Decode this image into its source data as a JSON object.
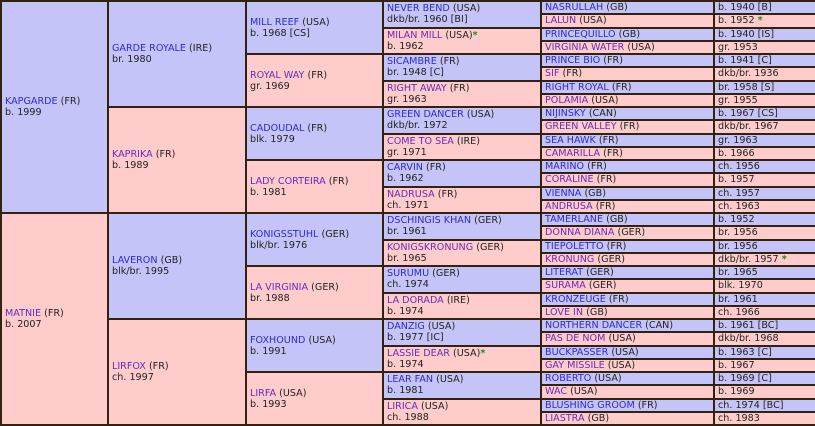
{
  "colors": {
    "sire_bg": "#c4c4f8",
    "dam_bg": "#ffcccc",
    "sire_link": "#2c2ccc",
    "dam_link": "#6a2ab8",
    "star": "#1e8a1e",
    "border": "#33220f"
  },
  "star_icon": "*",
  "gen1": [
    {
      "name": "KAPGARDE",
      "country": "(FR)",
      "info": "b. 1999"
    },
    {
      "name": "MATNIE",
      "country": "(FR)",
      "info": "b. 2007"
    }
  ],
  "gen2": [
    {
      "name": "GARDE ROYALE",
      "country": "(IRE)",
      "info": "br. 1980"
    },
    {
      "name": "KAPRIKA",
      "country": "(FR)",
      "info": "b. 1989"
    },
    {
      "name": "LAVERON",
      "country": "(GB)",
      "info": "blk/br. 1995"
    },
    {
      "name": "LIRFOX",
      "country": "(FR)",
      "info": "ch. 1997"
    }
  ],
  "gen3": [
    {
      "name": "MILL REEF",
      "country": "(USA)",
      "info": "b. 1968 [CS]"
    },
    {
      "name": "ROYAL WAY",
      "country": "(FR)",
      "info": "gr. 1969"
    },
    {
      "name": "CADOUDAL",
      "country": "(FR)",
      "info": "blk. 1979"
    },
    {
      "name": "LADY CORTEIRA",
      "country": "(FR)",
      "info": "b. 1981"
    },
    {
      "name": "KONIGSSTUHL",
      "country": "(GER)",
      "info": "blk/br. 1976"
    },
    {
      "name": "LA VIRGINIA",
      "country": "(GER)",
      "info": "br. 1988"
    },
    {
      "name": "FOXHOUND",
      "country": "(USA)",
      "info": "b. 1991"
    },
    {
      "name": "LIRFA",
      "country": "(USA)",
      "info": "b. 1993"
    }
  ],
  "gen4": [
    {
      "name": "NEVER BEND",
      "country": "(USA)",
      "info": "dkb/br. 1960 [BI]"
    },
    {
      "name": "MILAN MILL",
      "country": "(USA)",
      "info": "b. 1962",
      "star": "name"
    },
    {
      "name": "SICAMBRE",
      "country": "(FR)",
      "info": "br. 1948 [C]"
    },
    {
      "name": "RIGHT AWAY",
      "country": "(FR)",
      "info": "gr. 1963"
    },
    {
      "name": "GREEN DANCER",
      "country": "(USA)",
      "info": "dkb/br. 1972"
    },
    {
      "name": "COME TO SEA",
      "country": "(IRE)",
      "info": "gr. 1971"
    },
    {
      "name": "CARVIN",
      "country": "(FR)",
      "info": "b. 1962"
    },
    {
      "name": "NADRUSA",
      "country": "(FR)",
      "info": "ch. 1971"
    },
    {
      "name": "DSCHINGIS KHAN",
      "country": "(GER)",
      "info": "br. 1961"
    },
    {
      "name": "KONIGSKRONUNG",
      "country": "(GER)",
      "info": "br. 1965"
    },
    {
      "name": "SURUMU",
      "country": "(GER)",
      "info": "ch. 1974"
    },
    {
      "name": "LA DORADA",
      "country": "(IRE)",
      "info": "b. 1974"
    },
    {
      "name": "DANZIG",
      "country": "(USA)",
      "info": "b. 1977 [IC]"
    },
    {
      "name": "LASSIE DEAR",
      "country": "(USA)",
      "info": "b. 1974",
      "star": "name"
    },
    {
      "name": "LEAR FAN",
      "country": "(USA)",
      "info": "b. 1981"
    },
    {
      "name": "LIRICA",
      "country": "(USA)",
      "info": "ch. 1988"
    }
  ],
  "gen5": [
    {
      "name": "NASRULLAH",
      "country": "(GB)",
      "info": "b. 1940 [B]"
    },
    {
      "name": "LALUN",
      "country": "(USA)",
      "info": "b. 1952",
      "star": "info"
    },
    {
      "name": "PRINCEQUILLO",
      "country": "(GB)",
      "info": "b. 1940 [IS]"
    },
    {
      "name": "VIRGINIA WATER",
      "country": "(USA)",
      "info": "gr. 1953"
    },
    {
      "name": "PRINCE BIO",
      "country": "(FR)",
      "info": "b. 1941 [C]"
    },
    {
      "name": "SIF",
      "country": "(FR)",
      "info": "dkb/br. 1936"
    },
    {
      "name": "RIGHT ROYAL",
      "country": "(FR)",
      "info": "br. 1958 [S]"
    },
    {
      "name": "POLAMIA",
      "country": "(USA)",
      "info": "gr. 1955"
    },
    {
      "name": "NIJINSKY",
      "country": "(CAN)",
      "info": "b. 1967 [CS]"
    },
    {
      "name": "GREEN VALLEY",
      "country": "(FR)",
      "info": "dkb/br. 1967"
    },
    {
      "name": "SEA HAWK",
      "country": "(FR)",
      "info": "gr. 1963"
    },
    {
      "name": "CAMARILLA",
      "country": "(FR)",
      "info": "b. 1966"
    },
    {
      "name": "MARINO",
      "country": "(FR)",
      "info": "ch. 1956"
    },
    {
      "name": "CORALINE",
      "country": "(FR)",
      "info": "b. 1957"
    },
    {
      "name": "VIENNA",
      "country": "(GB)",
      "info": "ch. 1957"
    },
    {
      "name": "ANDRUSA",
      "country": "(FR)",
      "info": "ch. 1963"
    },
    {
      "name": "TAMERLANE",
      "country": "(GB)",
      "info": "b. 1952"
    },
    {
      "name": "DONNA DIANA",
      "country": "(GER)",
      "info": "br. 1956"
    },
    {
      "name": "TIEPOLETTO",
      "country": "(FR)",
      "info": "br. 1956"
    },
    {
      "name": "KRONUNG",
      "country": "(GER)",
      "info": "dkb/br. 1957",
      "star": "info"
    },
    {
      "name": "LITERAT",
      "country": "(GER)",
      "info": "br. 1965"
    },
    {
      "name": "SURAMA",
      "country": "(GER)",
      "info": "blk. 1970"
    },
    {
      "name": "KRONZEUGE",
      "country": "(FR)",
      "info": "br. 1961"
    },
    {
      "name": "LOVE IN",
      "country": "(GB)",
      "info": "ch. 1966"
    },
    {
      "name": "NORTHERN DANCER",
      "country": "(CAN)",
      "info": "b. 1961 [BC]"
    },
    {
      "name": "PAS DE NOM",
      "country": "(USA)",
      "info": "dkb/br. 1968"
    },
    {
      "name": "BUCKPASSER",
      "country": "(USA)",
      "info": "b. 1963 [C]"
    },
    {
      "name": "GAY MISSILE",
      "country": "(USA)",
      "info": "b. 1967"
    },
    {
      "name": "ROBERTO",
      "country": "(USA)",
      "info": "b. 1969 [C]"
    },
    {
      "name": "WAC",
      "country": "(USA)",
      "info": "b. 1969"
    },
    {
      "name": "BLUSHING GROOM",
      "country": "(FR)",
      "info": "ch. 1974 [BC]"
    },
    {
      "name": "LIASTRA",
      "country": "(GB)",
      "info": "ch. 1983"
    }
  ]
}
